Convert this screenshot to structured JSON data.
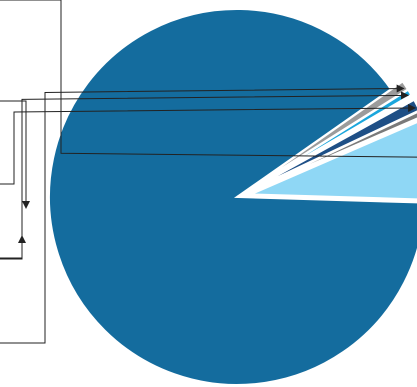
{
  "chart_data": {
    "type": "pie",
    "title": "",
    "start_angle_deg": 35,
    "direction": "counterclockwise",
    "values": [
      89.8,
      7.0,
      0.5,
      1.0,
      0.4,
      0.5,
      0.8
    ],
    "colors": [
      "#146C9E",
      "#8FD7F5",
      "#7A7A7A",
      "#1E4F86",
      "#FFFFFF",
      "#1AA6DC",
      "#9B9B9B"
    ],
    "exploded": [
      false,
      true,
      true,
      true,
      false,
      true,
      true
    ],
    "callouts": [
      false,
      true,
      false,
      true,
      false,
      true,
      true
    ],
    "legend": "none"
  }
}
